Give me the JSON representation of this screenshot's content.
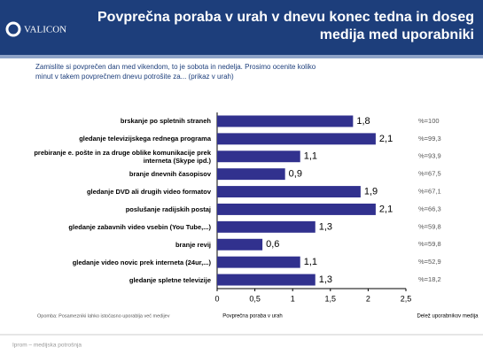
{
  "header": {
    "logo": "VALICON",
    "title": "Povprečna poraba v urah v dnevu konec tedna in doseg medija med uporabniki"
  },
  "chart_data": {
    "type": "bar",
    "orientation": "horizontal",
    "subtitle": "Zamislite si povprečen dan med vikendom, to je sobota in nedelja. Prosimo ocenite koliko minut v takem povprečnem dnevu potrošite za... (prikaz v urah)",
    "categories": [
      "brskanje po spletnih straneh",
      "gledanje televizijskega rednega programa",
      "prebiranje e. pošte in za druge oblike komunikacije prek interneta (Skype ipd.)",
      "branje dnevnih časopisov",
      "gledanje DVD ali drugih video formatov",
      "poslušanje radijskih postaj",
      "gledanje zabavnih video vsebin (You Tube,...)",
      "branje revij",
      "gledanje video novic prek interneta (24ur,...)",
      "gledanje spletne televizije"
    ],
    "values": [
      1.8,
      2.1,
      1.1,
      0.9,
      1.9,
      2.1,
      1.3,
      0.6,
      1.1,
      1.3
    ],
    "value_labels": [
      "1,8",
      "2,1",
      "1,1",
      "0,9",
      "1,9",
      "2,1",
      "1,3",
      "0,6",
      "1,1",
      "1,3"
    ],
    "share_labels": [
      "%=100",
      "%=99,3",
      "%=93,9",
      "%=67,5",
      "%=67,1",
      "%=66,3",
      "%=59,8",
      "%=59,8",
      "%=52,9",
      "%=18,2"
    ],
    "color": "#31318e",
    "xlim": [
      0,
      2.5
    ],
    "xticks": [
      0,
      {
        "value": 0.5,
        "label": "0,5"
      },
      1,
      {
        "value": 1.5,
        "label": "1,5"
      },
      2,
      {
        "value": 2.5,
        "label": "2,5"
      }
    ],
    "xlabel": "Povprečna poraba v urah",
    "share_title": "Delež uporabnikov medija",
    "note": "Opomba: Posamezniki lahko istočasno uporablja več medijev"
  },
  "footer": "Iprom – medijska potrošnja"
}
